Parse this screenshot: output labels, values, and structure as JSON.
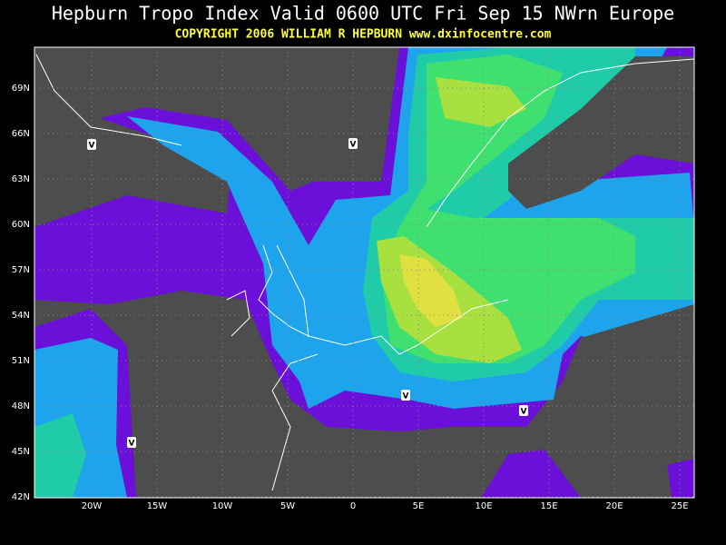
{
  "header": {
    "title": "Hepburn Tropo Index Valid 0600 UTC Fri Sep 15 NWrn Europe",
    "subtitle": "COPYRIGHT 2006  WILLIAM R HEPBURN  www.dxinfocentre.com"
  },
  "map": {
    "lat_labels": [
      "69N",
      "66N",
      "63N",
      "60N",
      "57N",
      "54N",
      "51N",
      "48N",
      "45N",
      "42N"
    ],
    "lon_labels": [
      "20W",
      "15W",
      "10W",
      "5W",
      "0",
      "5E",
      "10E",
      "15E",
      "20E",
      "25E"
    ],
    "markers": [
      "V",
      "V",
      "V",
      "V",
      "V"
    ]
  }
}
